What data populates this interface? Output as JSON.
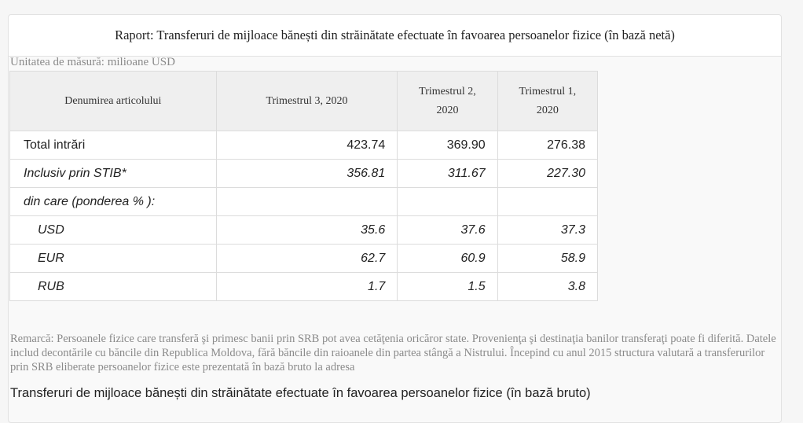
{
  "header": {
    "title": "Raport: Transferuri de mijloace bănești din străinătate efectuate în favoarea persoanelor fizice (în bază netă)"
  },
  "unit": "Unitatea de măsură: milioane USD",
  "table": {
    "headers": [
      "Denumirea articolului",
      "Trimestrul 3, 2020",
      "Trimestrul 2, 2020",
      "Trimestrul 1, 2020"
    ],
    "rows": [
      {
        "label": "Total intrări",
        "values": [
          "423.74",
          "369.90",
          "276.38"
        ]
      },
      {
        "label": "Inclusiv prin STIB*",
        "values": [
          "356.81",
          "311.67",
          "227.30"
        ]
      },
      {
        "label": "din care (ponderea % ):",
        "values": [
          "",
          "",
          ""
        ]
      },
      {
        "label": "USD",
        "values": [
          "35.6",
          "37.6",
          "37.3"
        ]
      },
      {
        "label": "EUR",
        "values": [
          "62.7",
          "60.9",
          "58.9"
        ]
      },
      {
        "label": "RUB",
        "values": [
          "1.7",
          "1.5",
          "3.8"
        ]
      }
    ]
  },
  "remark": "Remarcă: Persoanele fizice care transferă şi primesc banii prin SRB pot avea cetăţenia oricăror state. Provenienţa şi destinaţia banilor transferaţi poate fi diferită. Datele includ decontările cu băncile din Republica Moldova, fără băncile din raioanele din partea stângă a Nistrului. Începind cu anul 2015 structura valutară a transferurilor prin SRB eliberate persoanelor fizice este prezentată în bază bruto la adresa",
  "bottom_link": "Transferuri de mijloace bănești din străinătate efectuate în favoarea persoanelor fizice (în bază bruto)"
}
